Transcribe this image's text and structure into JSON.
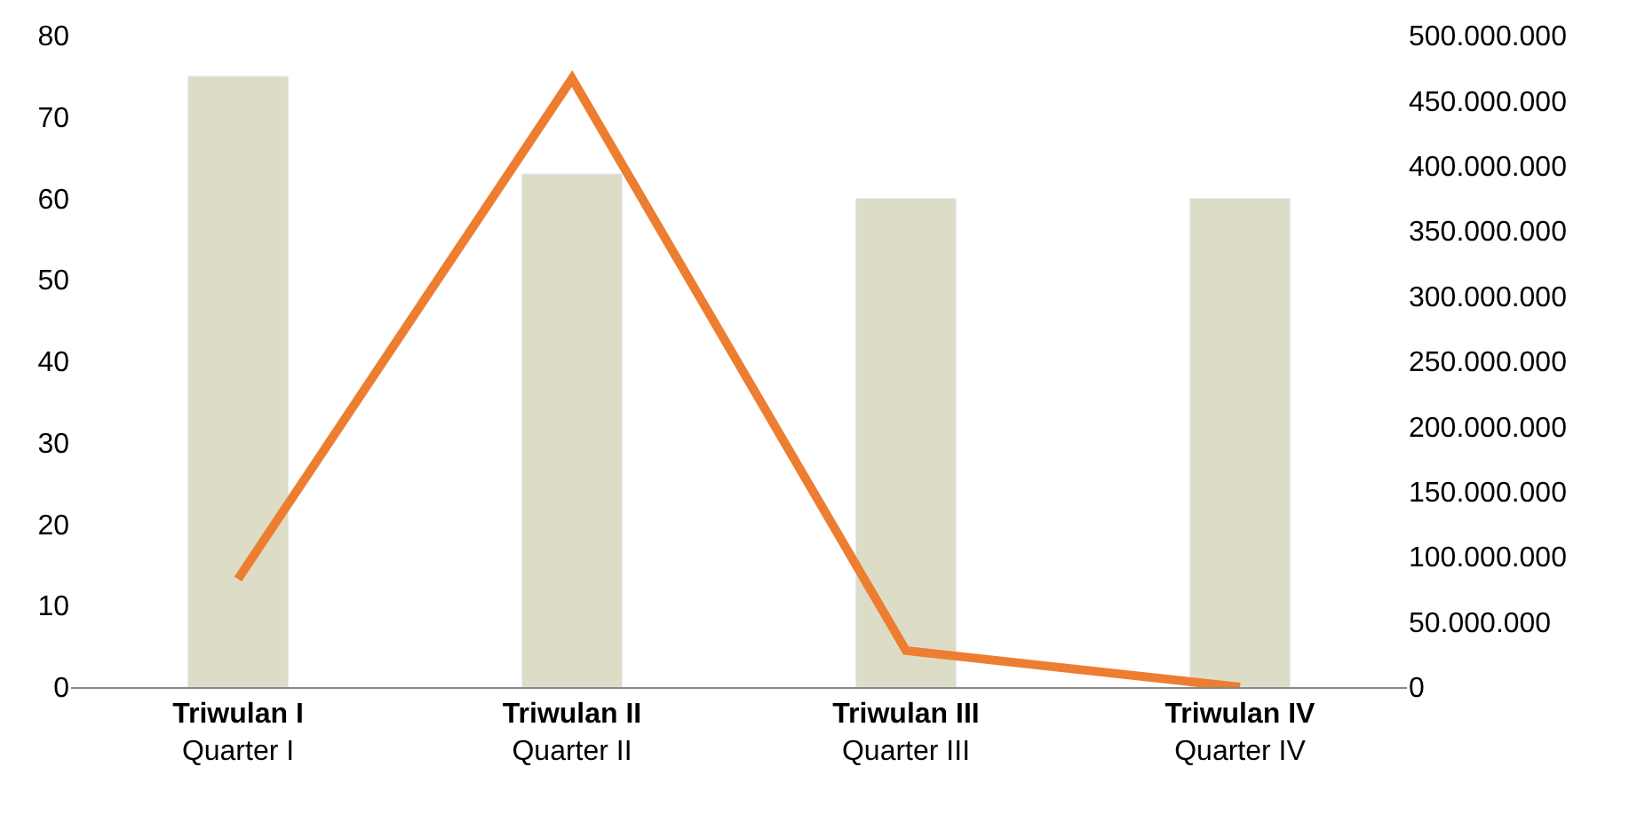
{
  "chart_data": {
    "type": "bar",
    "categories": [
      "Triwulan I\nQuarter I",
      "Triwulan II\nQuarter II",
      "Triwulan III\nQuarter III",
      "Triwulan IV\nQuarter IV"
    ],
    "series": [
      {
        "color": "#dddcc6",
        "values": [
          75,
          63,
          60,
          60
        ]
      },
      {
        "type": "line",
        "axis": "y2",
        "color": "#ed7d31",
        "values": [
          83000000,
          467000000,
          28000000,
          0
        ]
      }
    ],
    "ylim": [
      0,
      80
    ],
    "yticks": [
      0,
      10,
      20,
      30,
      40,
      50,
      60,
      70,
      80
    ],
    "y2lim": [
      0,
      500000000
    ],
    "y2ticks": [
      {
        "value": 0,
        "label": "0"
      },
      {
        "value": 50000000,
        "label": "50.000.000"
      },
      {
        "value": 100000000,
        "label": "100.000.000"
      },
      {
        "value": 150000000,
        "label": "150.000.000"
      },
      {
        "value": 200000000,
        "label": "200.000.000"
      },
      {
        "value": 250000000,
        "label": "250.000.000"
      },
      {
        "value": 300000000,
        "label": "300.000.000"
      },
      {
        "value": 350000000,
        "label": "350.000.000"
      },
      {
        "value": 400000000,
        "label": "400.000.000"
      },
      {
        "value": 450000000,
        "label": "450.000.000"
      },
      {
        "value": 500000000,
        "label": "500.000.000"
      }
    ],
    "marker": "none"
  }
}
